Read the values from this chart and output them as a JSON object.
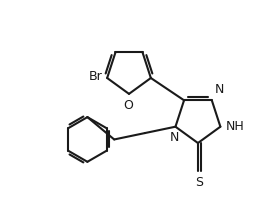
{
  "bg_color": "#ffffff",
  "line_color": "#1a1a1a",
  "line_width": 1.5,
  "font_size": 9.0,
  "figsize": [
    2.58,
    2.12
  ],
  "dpi": 100,
  "xlim": [
    -0.9,
    1.1
  ],
  "ylim": [
    -0.2,
    1.45
  ]
}
